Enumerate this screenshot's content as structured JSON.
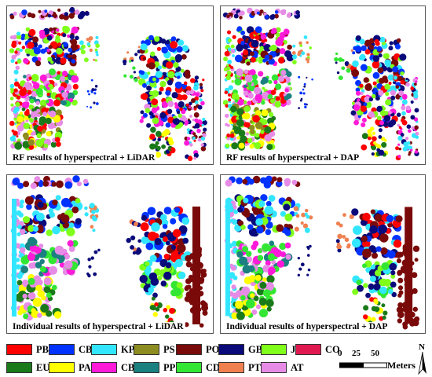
{
  "panels": [
    {
      "caption": "RF results of hyperspectral + LiDAR"
    },
    {
      "caption": "RF results of hyperspectral + DAP"
    },
    {
      "caption": "Individual results of hyperspectral + LiDAR"
    },
    {
      "caption": "Individual results of hyperspectral + DAP"
    }
  ],
  "legend": [
    {
      "code": "PB",
      "color": "#ff0000"
    },
    {
      "code": "CB",
      "color": "#0033ff"
    },
    {
      "code": "KP",
      "color": "#33e6ff"
    },
    {
      "code": "PS",
      "color": "#8c8c20"
    },
    {
      "code": "PO",
      "color": "#7a0a0a"
    },
    {
      "code": "GB",
      "color": "#0a0a7a"
    },
    {
      "code": "JC",
      "color": "#80ff1a"
    },
    {
      "code": "CO",
      "color": "#e01a50"
    },
    {
      "code": "EU",
      "color": "#1a7a1a"
    },
    {
      "code": "PA",
      "color": "#ffff00"
    },
    {
      "code": "CB1",
      "color": "#ff1ad9"
    },
    {
      "code": "PP",
      "color": "#1a8080"
    },
    {
      "code": "CD",
      "color": "#33e633"
    },
    {
      "code": "PT",
      "color": "#f08050"
    },
    {
      "code": "AT",
      "color": "#e68ce6"
    }
  ],
  "scalebar": {
    "ticks": [
      "0",
      "25",
      "50"
    ],
    "unit": "Meters"
  },
  "north_arrow": {
    "letter": "N"
  }
}
